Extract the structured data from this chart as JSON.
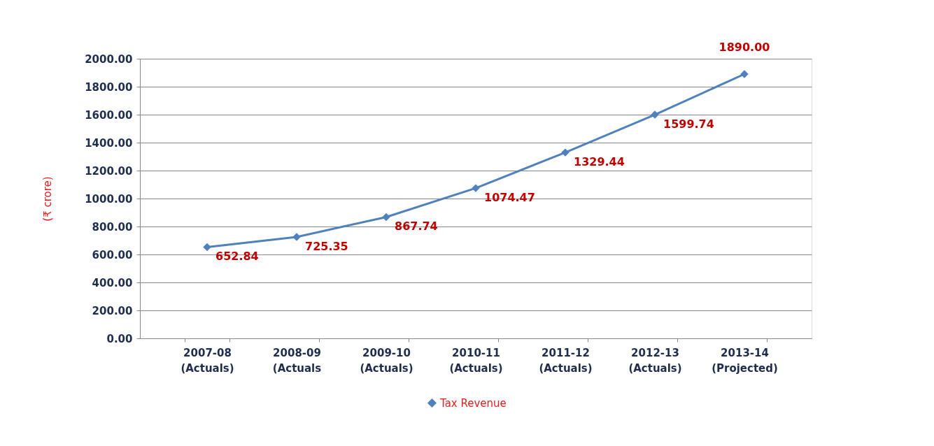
{
  "chart_data": {
    "type": "line",
    "categories": [
      "2007-08 (Actuals)",
      "2008-09 (Actuals",
      "2009-10 (Actuals)",
      "2010-11 (Actuals)",
      "2011-12 (Actuals)",
      "2012-13 (Actuals)",
      "2013-14 (Projected)"
    ],
    "series": [
      {
        "name": "Tax Revenue",
        "color": "#4f81bd",
        "values": [
          652.84,
          725.35,
          867.74,
          1074.47,
          1329.44,
          1599.74,
          1890.0
        ],
        "value_labels": [
          "652.84",
          "725.35",
          "867.74",
          "1074.47",
          "1329.44",
          "1599.74",
          "1890.00"
        ]
      }
    ],
    "ylabel": "(₹ crore)",
    "ylim": [
      0,
      2000
    ],
    "yticks": [
      {
        "value": 0,
        "label": "0.00"
      },
      {
        "value": 200,
        "label": "200.00"
      },
      {
        "value": 400,
        "label": "400.00"
      },
      {
        "value": 600,
        "label": "600.00"
      },
      {
        "value": 800,
        "label": "800.00"
      },
      {
        "value": 1000,
        "label": "1000.00"
      },
      {
        "value": 1200,
        "label": "1200.00"
      },
      {
        "value": 1400,
        "label": "1400.00"
      },
      {
        "value": 1600,
        "label": "1600.00"
      },
      {
        "value": 1800,
        "label": "1800.00"
      },
      {
        "value": 2000,
        "label": "2000.00"
      }
    ],
    "grid": "y",
    "legend": "bottom",
    "marker": "diamond",
    "line_style": "solid"
  }
}
